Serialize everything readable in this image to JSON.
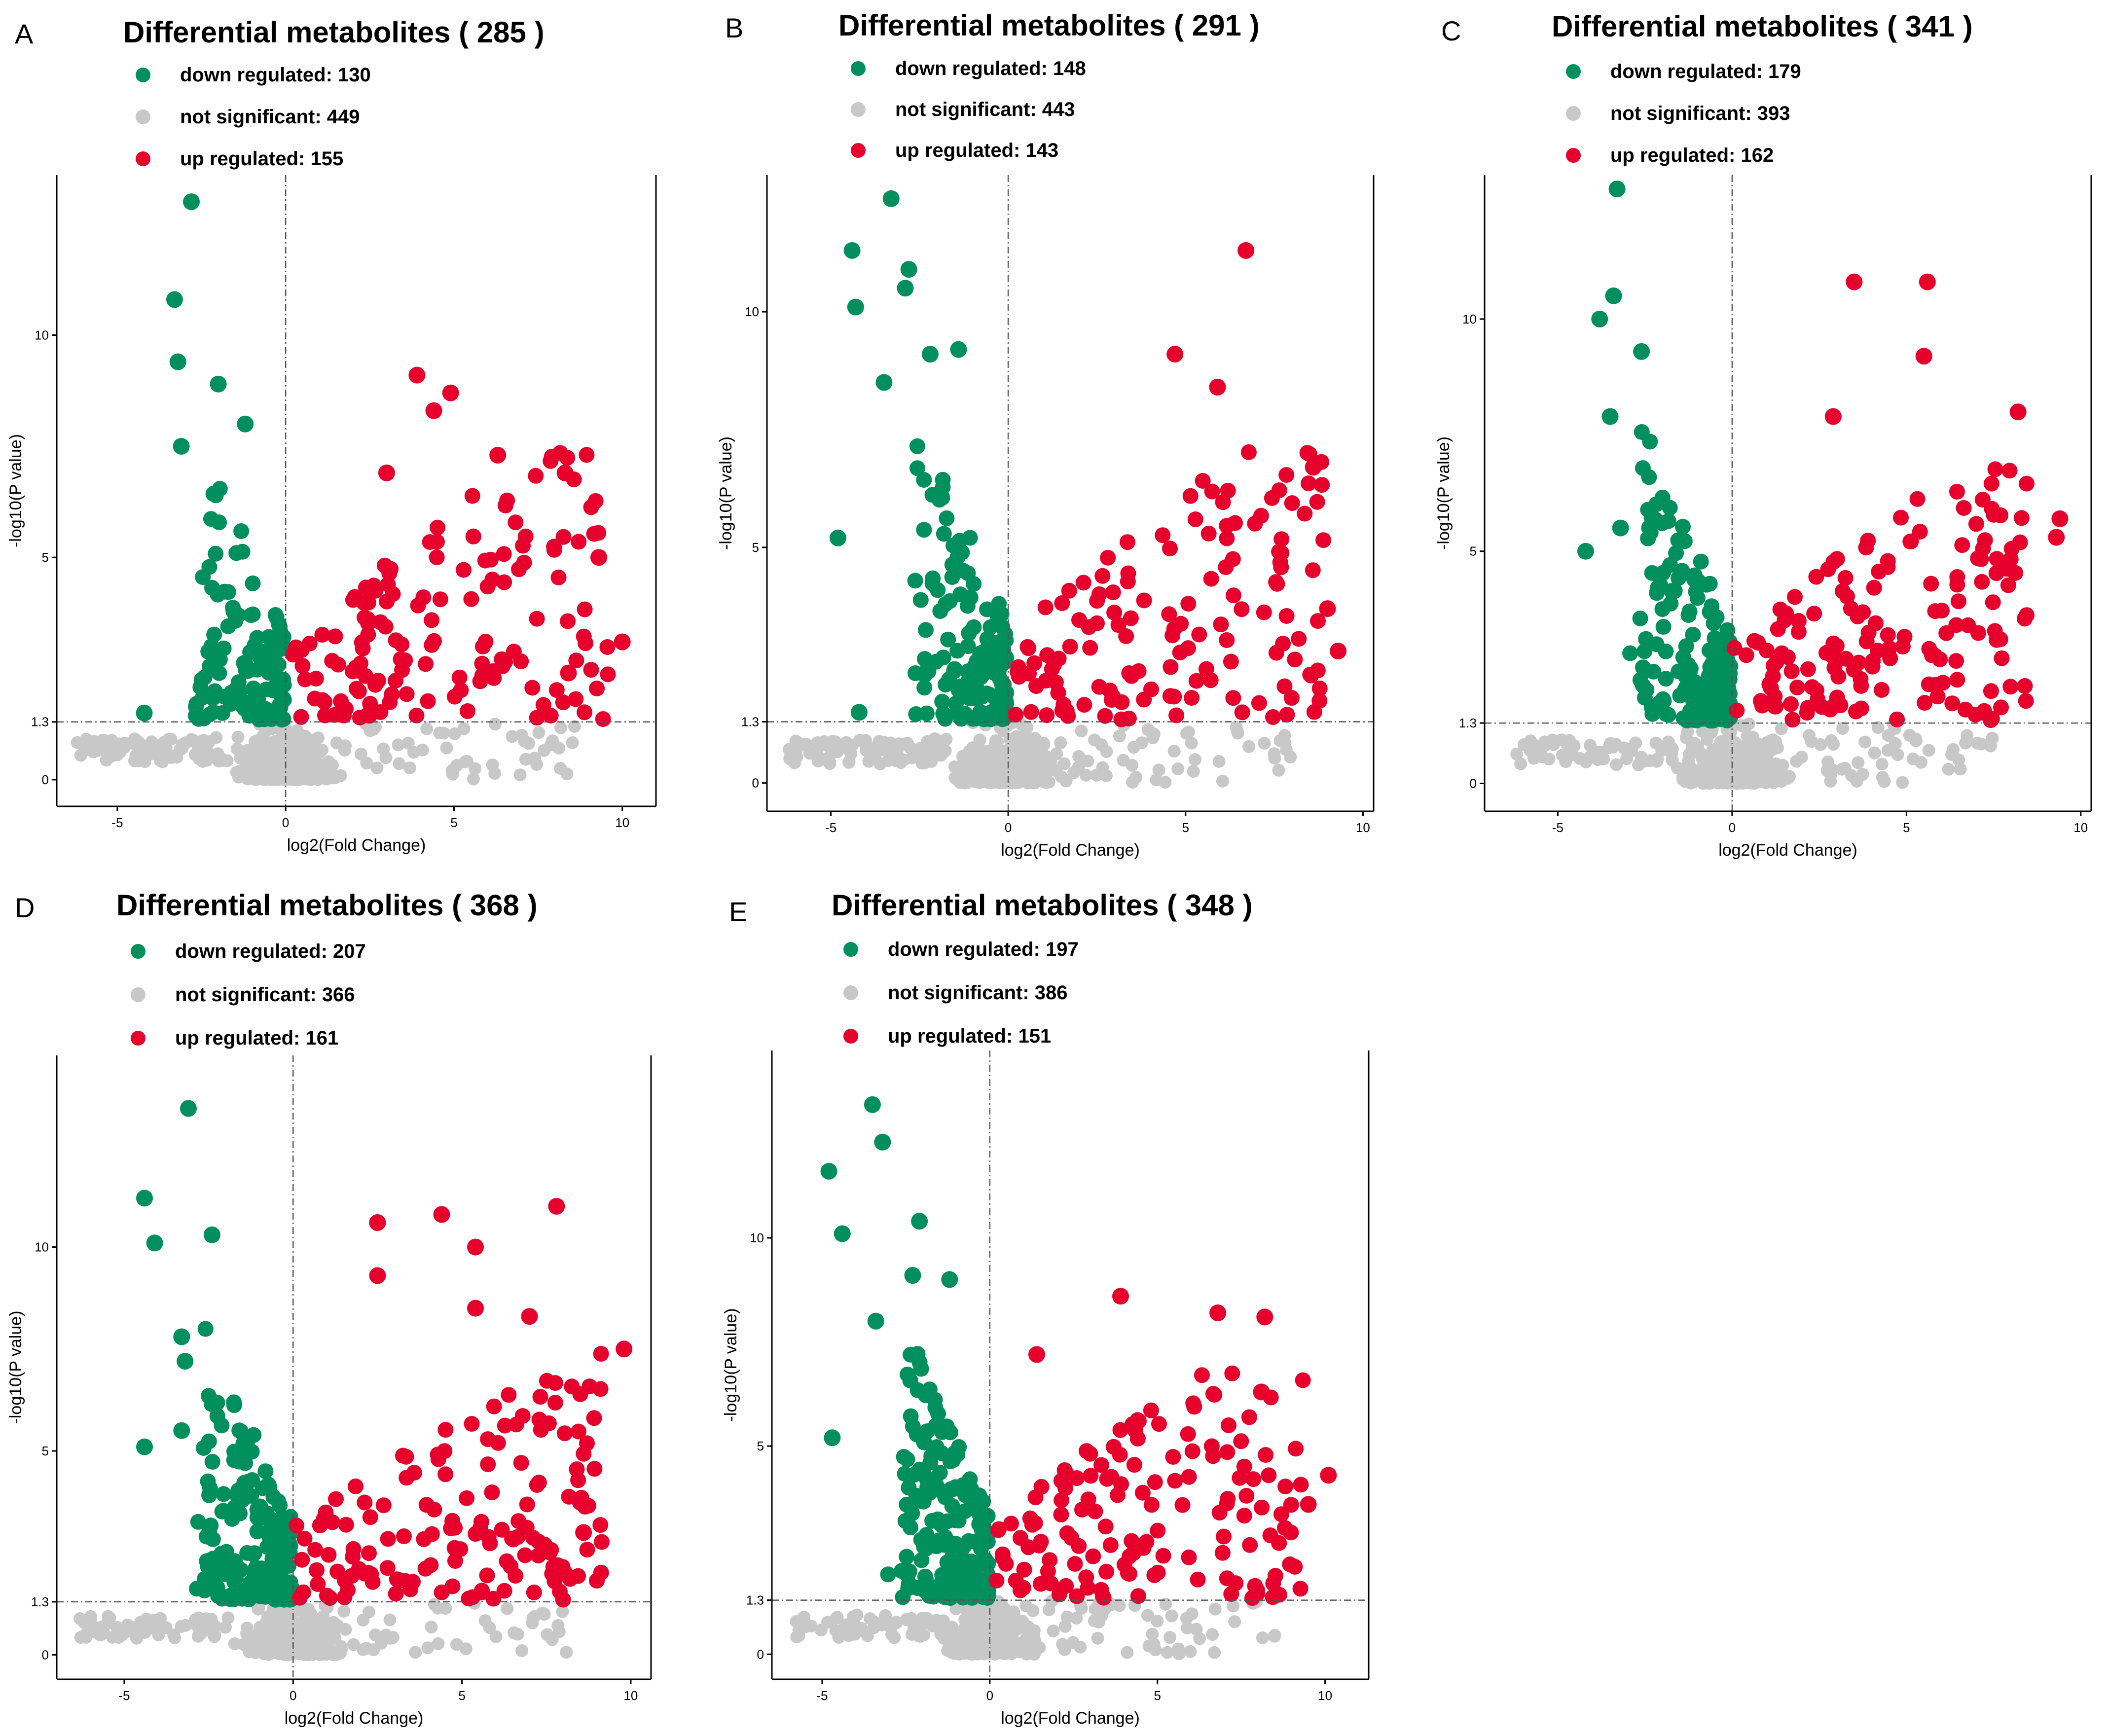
{
  "colors": {
    "down": "#008F5D",
    "ns": "#C8C8C8",
    "up": "#E8002D",
    "axis": "#000000",
    "ref": "#555555"
  },
  "chart_data": [
    {
      "type": "scatter",
      "panel": "A",
      "title": "Differential metabolites ( 285 )",
      "xlabel": "log2(Fold Change)",
      "ylabel": "-log10(P value)",
      "xlim": [
        -6.8,
        11
      ],
      "ylim": [
        -0.6,
        13.6
      ],
      "xticks": [
        -5,
        0,
        5,
        10
      ],
      "xtick_labels": [
        "-5",
        "0",
        "5",
        "10"
      ],
      "yticks": [
        0,
        1.3,
        5,
        10
      ],
      "ytick_labels": [
        "0",
        "1.3",
        "5",
        "10"
      ],
      "ref_lines": {
        "x": 0,
        "y": 1.3
      },
      "legend": [
        {
          "key": "down",
          "label": "down regulated: 130"
        },
        {
          "key": "ns",
          "label": "not significant: 449"
        },
        {
          "key": "up",
          "label": "up regulated: 155"
        }
      ],
      "highlights": {
        "down": [
          [
            -2.8,
            13.0
          ],
          [
            -3.3,
            10.8
          ],
          [
            -3.2,
            9.4
          ],
          [
            -2.0,
            8.9
          ],
          [
            -3.1,
            7.5
          ],
          [
            -4.2,
            1.5
          ],
          [
            -1.2,
            8.0
          ]
        ],
        "up": [
          [
            3.9,
            9.1
          ],
          [
            4.9,
            8.7
          ],
          [
            4.4,
            8.3
          ],
          [
            10.0,
            3.1
          ],
          [
            8.4,
            2.4
          ],
          [
            6.3,
            7.3
          ],
          [
            8.3,
            6.9
          ],
          [
            9.3,
            5.0
          ],
          [
            3.0,
            6.9
          ]
        ]
      },
      "params": {
        "down": 123,
        "up": 146,
        "ns": 449,
        "xmin": -6.2,
        "xmax": 10.2,
        "ymax": 7.5,
        "seed": 101
      }
    },
    {
      "type": "scatter",
      "panel": "B",
      "title": "Differential metabolites ( 291 )",
      "xlabel": "log2(Fold Change)",
      "ylabel": "-log10(P value)",
      "xlim": [
        -6.8,
        10.3
      ],
      "ylim": [
        -0.6,
        12.9
      ],
      "xticks": [
        -5,
        0,
        5,
        10
      ],
      "xtick_labels": [
        "-5",
        "0",
        "5",
        "10"
      ],
      "yticks": [
        0,
        1.3,
        5,
        10
      ],
      "ytick_labels": [
        "0",
        "1.3",
        "5",
        "10"
      ],
      "ref_lines": {
        "x": 0,
        "y": 1.3
      },
      "legend": [
        {
          "key": "down",
          "label": "down regulated: 148"
        },
        {
          "key": "ns",
          "label": "not significant: 443"
        },
        {
          "key": "up",
          "label": "up regulated: 143"
        }
      ],
      "highlights": {
        "down": [
          [
            -3.3,
            12.4
          ],
          [
            -4.4,
            11.3
          ],
          [
            -2.8,
            10.9
          ],
          [
            -2.9,
            10.5
          ],
          [
            -4.3,
            10.1
          ],
          [
            -3.5,
            8.5
          ],
          [
            -2.2,
            9.1
          ],
          [
            -1.4,
            9.2
          ],
          [
            -4.8,
            5.2
          ],
          [
            -4.2,
            1.5
          ]
        ],
        "up": [
          [
            6.7,
            11.3
          ],
          [
            4.7,
            9.1
          ],
          [
            5.9,
            8.4
          ],
          [
            8.6,
            6.7
          ],
          [
            9.3,
            2.8
          ],
          [
            9.0,
            3.7
          ]
        ]
      },
      "params": {
        "down": 138,
        "up": 137,
        "ns": 443,
        "xmin": -6.2,
        "xmax": 9.5,
        "ymax": 7.0,
        "seed": 202
      }
    },
    {
      "type": "scatter",
      "panel": "C",
      "title": "Differential metabolites ( 341 )",
      "xlabel": "log2(Fold Change)",
      "ylabel": "-log10(P value)",
      "xlim": [
        -7.1,
        10.3
      ],
      "ylim": [
        -0.6,
        13.1
      ],
      "xticks": [
        -5,
        0,
        5,
        10
      ],
      "xtick_labels": [
        "-5",
        "0",
        "5",
        "10"
      ],
      "yticks": [
        0,
        1.3,
        5,
        10
      ],
      "ytick_labels": [
        "0",
        "1.3",
        "5",
        "10"
      ],
      "ref_lines": {
        "x": 0,
        "y": 1.3
      },
      "legend": [
        {
          "key": "down",
          "label": "down regulated: 179"
        },
        {
          "key": "ns",
          "label": "not significant: 393"
        },
        {
          "key": "up",
          "label": "up regulated: 162"
        }
      ],
      "highlights": {
        "down": [
          [
            -3.3,
            12.8
          ],
          [
            -3.4,
            10.5
          ],
          [
            -3.8,
            10.0
          ],
          [
            -2.6,
            9.3
          ],
          [
            -3.5,
            7.9
          ],
          [
            -4.2,
            5.0
          ],
          [
            -3.2,
            5.5
          ]
        ],
        "up": [
          [
            3.5,
            10.8
          ],
          [
            5.6,
            10.8
          ],
          [
            5.5,
            9.2
          ],
          [
            8.2,
            8.0
          ],
          [
            2.9,
            7.9
          ],
          [
            9.4,
            5.7
          ],
          [
            9.3,
            5.3
          ]
        ]
      },
      "params": {
        "down": 170,
        "up": 155,
        "ns": 393,
        "xmin": -6.2,
        "xmax": 9.0,
        "ymax": 6.8,
        "seed": 303
      }
    },
    {
      "type": "scatter",
      "panel": "D",
      "title": "Differential metabolites ( 368 )",
      "xlabel": "log2(Fold Change)",
      "ylabel": "-log10(P value)",
      "xlim": [
        -7.0,
        10.6
      ],
      "ylim": [
        -0.6,
        14.7
      ],
      "xticks": [
        -5,
        0,
        5,
        10
      ],
      "xtick_labels": [
        "-5",
        "0",
        "5",
        "10"
      ],
      "yticks": [
        0,
        1.3,
        5,
        10
      ],
      "ytick_labels": [
        "0",
        "1.3",
        "5",
        "10"
      ],
      "ref_lines": {
        "x": 0,
        "y": 1.3
      },
      "legend": [
        {
          "key": "down",
          "label": "down regulated: 207"
        },
        {
          "key": "ns",
          "label": "not significant: 366"
        },
        {
          "key": "up",
          "label": "up regulated: 161"
        }
      ],
      "highlights": {
        "down": [
          [
            -3.1,
            13.4
          ],
          [
            -4.4,
            11.2
          ],
          [
            -4.1,
            10.1
          ],
          [
            -2.4,
            10.3
          ],
          [
            -3.3,
            7.8
          ],
          [
            -3.2,
            7.2
          ],
          [
            -4.4,
            5.1
          ],
          [
            -3.3,
            5.5
          ]
        ],
        "up": [
          [
            7.8,
            11.0
          ],
          [
            4.4,
            10.8
          ],
          [
            2.5,
            10.6
          ],
          [
            5.4,
            10.0
          ],
          [
            9.8,
            7.5
          ],
          [
            2.5,
            9.3
          ],
          [
            5.4,
            8.5
          ],
          [
            7.0,
            8.3
          ],
          [
            8.6,
            3.0
          ]
        ]
      },
      "params": {
        "down": 195,
        "up": 150,
        "ns": 366,
        "xmin": -6.4,
        "xmax": 9.7,
        "ymax": 7.4,
        "seed": 404
      }
    },
    {
      "type": "scatter",
      "panel": "E",
      "title": "Differential metabolites ( 348 )",
      "xlabel": "log2(Fold Change)",
      "ylabel": "-log10(P value)",
      "xlim": [
        -6.5,
        11.3
      ],
      "ylim": [
        -0.6,
        14.5
      ],
      "xticks": [
        -5,
        0,
        5,
        10
      ],
      "xtick_labels": [
        "-5",
        "0",
        "5",
        "10"
      ],
      "yticks": [
        0,
        1.3,
        5,
        10
      ],
      "ytick_labels": [
        "0",
        "1.3",
        "5",
        "10"
      ],
      "ref_lines": {
        "x": 0,
        "y": 1.3
      },
      "legend": [
        {
          "key": "down",
          "label": "down regulated: 197"
        },
        {
          "key": "ns",
          "label": "not significant: 386"
        },
        {
          "key": "up",
          "label": "up regulated: 151"
        }
      ],
      "highlights": {
        "down": [
          [
            -3.5,
            13.2
          ],
          [
            -3.2,
            12.3
          ],
          [
            -4.8,
            11.6
          ],
          [
            -4.4,
            10.1
          ],
          [
            -2.1,
            10.4
          ],
          [
            -2.3,
            9.1
          ],
          [
            -1.2,
            9.0
          ],
          [
            -3.4,
            8.0
          ],
          [
            -4.7,
            5.2
          ]
        ],
        "up": [
          [
            3.9,
            8.6
          ],
          [
            6.8,
            8.2
          ],
          [
            8.2,
            8.1
          ],
          [
            1.4,
            7.2
          ],
          [
            8.1,
            6.3
          ],
          [
            10.1,
            4.3
          ],
          [
            9.5,
            3.6
          ]
        ]
      },
      "params": {
        "down": 188,
        "up": 144,
        "ns": 386,
        "xmin": -6.0,
        "xmax": 10.0,
        "ymax": 7.0,
        "seed": 505
      }
    }
  ]
}
